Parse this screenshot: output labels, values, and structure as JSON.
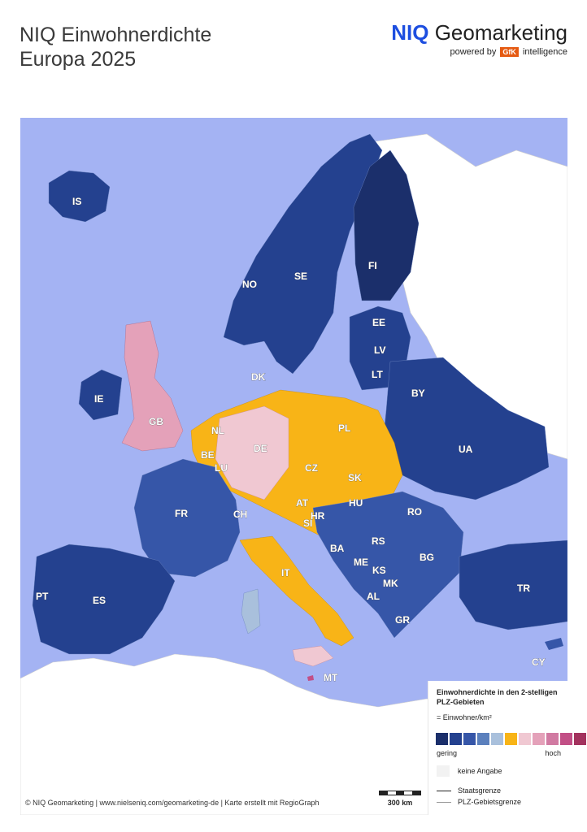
{
  "title": {
    "line1": "NIQ Einwohnerdichte",
    "line2": "Europa 2025"
  },
  "brand": {
    "niq": "NIQ",
    "geomarketing": "Geomarketing",
    "powered_by": "powered by",
    "gfk": "GfK",
    "intelligence": "intelligence"
  },
  "country_labels": [
    {
      "code": "IS"
    },
    {
      "code": "NO"
    },
    {
      "code": "SE"
    },
    {
      "code": "FI"
    },
    {
      "code": "EE"
    },
    {
      "code": "LV"
    },
    {
      "code": "LT"
    },
    {
      "code": "DK"
    },
    {
      "code": "IE"
    },
    {
      "code": "GB"
    },
    {
      "code": "NL"
    },
    {
      "code": "BE"
    },
    {
      "code": "LU"
    },
    {
      "code": "DE"
    },
    {
      "code": "PL"
    },
    {
      "code": "BY"
    },
    {
      "code": "UA"
    },
    {
      "code": "CZ"
    },
    {
      "code": "SK"
    },
    {
      "code": "FR"
    },
    {
      "code": "CH"
    },
    {
      "code": "AT"
    },
    {
      "code": "HU"
    },
    {
      "code": "RO"
    },
    {
      "code": "SI"
    },
    {
      "code": "HR"
    },
    {
      "code": "BA"
    },
    {
      "code": "RS"
    },
    {
      "code": "ME"
    },
    {
      "code": "KS"
    },
    {
      "code": "BG"
    },
    {
      "code": "MK"
    },
    {
      "code": "AL"
    },
    {
      "code": "IT"
    },
    {
      "code": "PT"
    },
    {
      "code": "ES"
    },
    {
      "code": "GR"
    },
    {
      "code": "TR"
    },
    {
      "code": "MT"
    },
    {
      "code": "CY"
    }
  ],
  "legend": {
    "title": "Einwohnerdichte in den 2-stelligen PLZ-Gebieten",
    "unit": "= Einwohner/km²",
    "low": "gering",
    "high": "hoch",
    "no_data": "keine Angabe",
    "state_border": "Staatsgrenze",
    "plz_border": "PLZ-Gebietsgrenze",
    "colors": [
      "#1b2f6b",
      "#24418f",
      "#3656a8",
      "#5b80bd",
      "#a9c0dc",
      "#f8b417",
      "#f0c8d2",
      "#e4a1b9",
      "#d17aa2",
      "#c24f86",
      "#a3325e"
    ]
  },
  "scale": {
    "label": "300 km"
  },
  "credit": "© NIQ Geomarketing | www.nielseniq.com/geomarketing-de | Karte erstellt mit RegioGraph",
  "colors": {
    "sea": "#a4b3f3",
    "non_data_land": "#ffffff",
    "accent": "#1d4ee0"
  }
}
